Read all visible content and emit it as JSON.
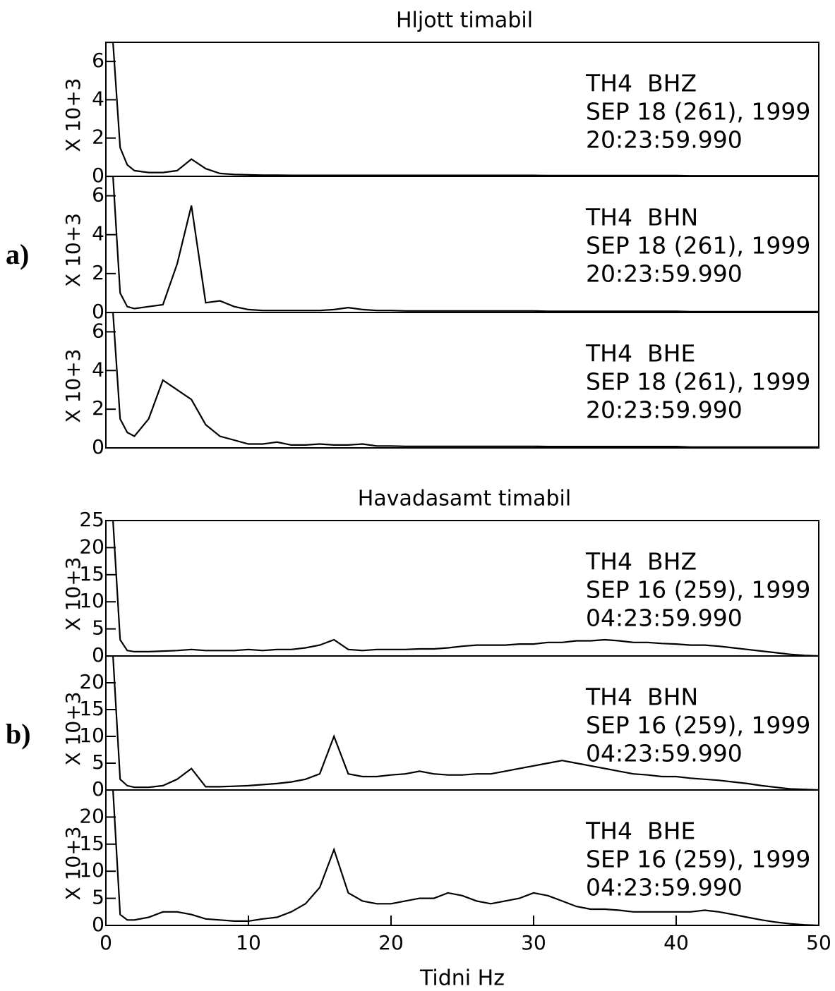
{
  "chart_data": [
    {
      "type": "line",
      "title": "Hljott timabil",
      "panel_label": "a)",
      "ylabel": "X 10+3",
      "station": "TH4",
      "channel": "BHZ",
      "date": "SEP 18 (261), 1999",
      "time": "20:23:59.990",
      "xlim": [
        0,
        50
      ],
      "ylim": [
        0,
        7
      ],
      "yticks": [
        0,
        2,
        4,
        6
      ],
      "color": "#000000",
      "x": [
        0,
        0.5,
        1,
        1.5,
        2,
        3,
        4,
        5,
        6,
        7,
        8,
        9,
        10,
        11,
        12,
        13,
        14,
        15,
        16,
        17,
        18,
        19,
        20,
        21,
        22,
        23,
        24,
        25,
        26,
        27,
        28,
        29,
        30,
        31,
        32,
        33,
        34,
        35,
        36,
        37,
        38,
        39,
        40,
        41,
        42,
        43,
        44,
        45,
        46,
        47,
        48,
        49,
        50
      ],
      "values": [
        7,
        7,
        1.5,
        0.6,
        0.3,
        0.2,
        0.2,
        0.3,
        0.9,
        0.4,
        0.15,
        0.1,
        0.08,
        0.06,
        0.06,
        0.05,
        0.05,
        0.05,
        0.05,
        0.05,
        0.05,
        0.05,
        0.05,
        0.05,
        0.05,
        0.05,
        0.05,
        0.05,
        0.05,
        0.05,
        0.05,
        0.05,
        0.05,
        0.04,
        0.04,
        0.04,
        0.04,
        0.04,
        0.04,
        0.04,
        0.04,
        0.04,
        0.04,
        0.03,
        0.03,
        0.03,
        0.03,
        0.03,
        0.03,
        0.03,
        0.03,
        0.03,
        0.03
      ]
    },
    {
      "type": "line",
      "ylabel": "X 10+3",
      "station": "TH4",
      "channel": "BHN",
      "date": "SEP 18 (261), 1999",
      "time": "20:23:59.990",
      "xlim": [
        0,
        50
      ],
      "ylim": [
        0,
        7
      ],
      "yticks": [
        0,
        2,
        4,
        6
      ],
      "color": "#000000",
      "x": [
        0,
        0.5,
        1,
        1.5,
        2,
        3,
        4,
        5,
        6,
        7,
        8,
        9,
        10,
        11,
        12,
        13,
        14,
        15,
        16,
        17,
        18,
        19,
        20,
        21,
        22,
        23,
        24,
        25,
        26,
        27,
        28,
        29,
        30,
        31,
        32,
        33,
        34,
        35,
        36,
        37,
        38,
        39,
        40,
        41,
        42,
        43,
        44,
        45,
        46,
        47,
        48,
        49,
        50
      ],
      "values": [
        7,
        7,
        1,
        0.3,
        0.2,
        0.3,
        0.4,
        2.5,
        5.5,
        0.5,
        0.6,
        0.3,
        0.15,
        0.1,
        0.1,
        0.1,
        0.1,
        0.1,
        0.15,
        0.25,
        0.15,
        0.1,
        0.1,
        0.08,
        0.08,
        0.08,
        0.08,
        0.08,
        0.08,
        0.08,
        0.08,
        0.08,
        0.08,
        0.06,
        0.06,
        0.06,
        0.06,
        0.06,
        0.06,
        0.06,
        0.06,
        0.06,
        0.06,
        0.04,
        0.04,
        0.04,
        0.04,
        0.04,
        0.04,
        0.04,
        0.04,
        0.04,
        0.04
      ]
    },
    {
      "type": "line",
      "ylabel": "X 10+3",
      "station": "TH4",
      "channel": "BHE",
      "date": "SEP 18 (261), 1999",
      "time": "20:23:59.990",
      "xlim": [
        0,
        50
      ],
      "ylim": [
        0,
        7
      ],
      "yticks": [
        0,
        2,
        4,
        6
      ],
      "color": "#000000",
      "x": [
        0,
        0.5,
        1,
        1.5,
        2,
        3,
        4,
        5,
        6,
        7,
        8,
        9,
        10,
        11,
        12,
        13,
        14,
        15,
        16,
        17,
        18,
        19,
        20,
        21,
        22,
        23,
        24,
        25,
        26,
        27,
        28,
        29,
        30,
        31,
        32,
        33,
        34,
        35,
        36,
        37,
        38,
        39,
        40,
        41,
        42,
        43,
        44,
        45,
        46,
        47,
        48,
        49,
        50
      ],
      "values": [
        7,
        7,
        1.5,
        0.8,
        0.6,
        1.5,
        3.5,
        3,
        2.5,
        1.2,
        0.6,
        0.4,
        0.2,
        0.2,
        0.3,
        0.15,
        0.15,
        0.2,
        0.15,
        0.15,
        0.2,
        0.1,
        0.1,
        0.08,
        0.08,
        0.08,
        0.08,
        0.08,
        0.08,
        0.08,
        0.08,
        0.08,
        0.08,
        0.07,
        0.07,
        0.07,
        0.07,
        0.07,
        0.07,
        0.07,
        0.07,
        0.07,
        0.07,
        0.04,
        0.04,
        0.04,
        0.04,
        0.04,
        0.04,
        0.04,
        0.04,
        0.04,
        0.04
      ]
    },
    {
      "type": "line",
      "title": "Havadasamt timabil",
      "panel_label": "b)",
      "ylabel": "X 10+3",
      "station": "TH4",
      "channel": "BHZ",
      "date": "SEP 16 (259), 1999",
      "time": "04:23:59.990",
      "xlim": [
        0,
        50
      ],
      "ylim": [
        0,
        25
      ],
      "yticks": [
        0,
        5,
        10,
        15,
        20,
        25
      ],
      "color": "#000000",
      "x": [
        0,
        0.5,
        1,
        1.5,
        2,
        3,
        4,
        5,
        6,
        7,
        8,
        9,
        10,
        11,
        12,
        13,
        14,
        15,
        16,
        17,
        18,
        19,
        20,
        21,
        22,
        23,
        24,
        25,
        26,
        27,
        28,
        29,
        30,
        31,
        32,
        33,
        34,
        35,
        36,
        37,
        38,
        39,
        40,
        41,
        42,
        43,
        44,
        45,
        46,
        47,
        48,
        49,
        50
      ],
      "values": [
        25,
        25,
        3,
        1,
        0.8,
        0.8,
        0.9,
        1,
        1.2,
        1,
        1,
        1,
        1.2,
        1,
        1.2,
        1.2,
        1.5,
        2,
        3,
        1.2,
        1,
        1.2,
        1.2,
        1.2,
        1.3,
        1.3,
        1.5,
        1.8,
        2,
        2,
        2,
        2.2,
        2.2,
        2.5,
        2.5,
        2.8,
        2.8,
        3,
        2.8,
        2.5,
        2.5,
        2.3,
        2.2,
        2,
        2,
        1.8,
        1.5,
        1.2,
        0.9,
        0.6,
        0.3,
        0.1,
        0
      ]
    },
    {
      "type": "line",
      "ylabel": "X 10+3",
      "station": "TH4",
      "channel": "BHN",
      "date": "SEP 16 (259), 1999",
      "time": "04:23:59.990",
      "xlim": [
        0,
        50
      ],
      "ylim": [
        0,
        25
      ],
      "yticks": [
        0,
        5,
        10,
        15,
        20
      ],
      "color": "#000000",
      "x": [
        0,
        0.5,
        1,
        1.5,
        2,
        3,
        4,
        5,
        6,
        7,
        8,
        9,
        10,
        11,
        12,
        13,
        14,
        15,
        16,
        17,
        18,
        19,
        20,
        21,
        22,
        23,
        24,
        25,
        26,
        27,
        28,
        29,
        30,
        31,
        32,
        33,
        34,
        35,
        36,
        37,
        38,
        39,
        40,
        41,
        42,
        43,
        44,
        45,
        46,
        47,
        48,
        49,
        50
      ],
      "values": [
        25,
        25,
        2,
        0.8,
        0.5,
        0.5,
        0.8,
        2,
        4,
        0.6,
        0.6,
        0.7,
        0.8,
        1,
        1.2,
        1.5,
        2,
        3,
        10,
        3,
        2.5,
        2.5,
        2.8,
        3,
        3.5,
        3,
        2.8,
        2.8,
        3,
        3,
        3.5,
        4,
        4.5,
        5,
        5.5,
        5,
        4.5,
        4,
        3.5,
        3,
        2.8,
        2.5,
        2.5,
        2.2,
        2,
        1.8,
        1.5,
        1.2,
        0.8,
        0.5,
        0.2,
        0.1,
        0
      ]
    },
    {
      "type": "line",
      "ylabel": "X 10+3",
      "station": "TH4",
      "channel": "BHE",
      "date": "SEP 16 (259), 1999",
      "time": "04:23:59.990",
      "xlim": [
        0,
        50
      ],
      "ylim": [
        0,
        25
      ],
      "yticks": [
        0,
        5,
        10,
        15,
        20
      ],
      "color": "#000000",
      "xlabel": "Tidni Hz",
      "xticks": [
        0,
        10,
        20,
        30,
        40,
        50
      ],
      "x": [
        0,
        0.5,
        1,
        1.5,
        2,
        3,
        4,
        5,
        6,
        7,
        8,
        9,
        10,
        11,
        12,
        13,
        14,
        15,
        16,
        17,
        18,
        19,
        20,
        21,
        22,
        23,
        24,
        25,
        26,
        27,
        28,
        29,
        30,
        31,
        32,
        33,
        34,
        35,
        36,
        37,
        38,
        39,
        40,
        41,
        42,
        43,
        44,
        45,
        46,
        47,
        48,
        49,
        50
      ],
      "values": [
        25,
        25,
        2,
        1,
        1,
        1.5,
        2.5,
        2.5,
        2,
        1.2,
        1,
        0.8,
        0.8,
        1.2,
        1.5,
        2.5,
        4,
        7,
        14,
        6,
        4.5,
        4,
        4,
        4.5,
        5,
        5,
        6,
        5.5,
        4.5,
        4,
        4.5,
        5,
        6,
        5.5,
        4.5,
        3.5,
        3,
        3,
        2.8,
        2.5,
        2.5,
        2.5,
        2.5,
        2.5,
        2.8,
        2.5,
        2,
        1.5,
        1,
        0.6,
        0.3,
        0.1,
        0
      ]
    }
  ]
}
